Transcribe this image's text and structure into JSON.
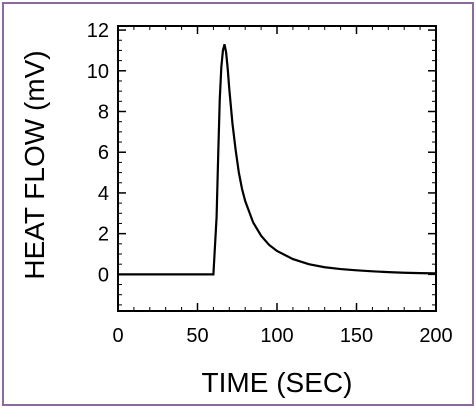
{
  "chart_data": {
    "type": "line",
    "xlabel": "TIME (SEC)",
    "ylabel": "HEAT FLOW (mV)",
    "xlim": [
      0,
      200
    ],
    "ylim": [
      -1.8,
      12.2
    ],
    "xticks": [
      0,
      50,
      100,
      150,
      200
    ],
    "yticks": [
      0,
      2,
      4,
      6,
      8,
      10,
      12
    ],
    "grid": false,
    "series": [
      {
        "color": "#000000",
        "x": [
          0,
          30,
          60,
          62,
          63,
          64,
          65,
          66,
          67,
          68,
          69,
          70,
          72,
          74,
          76,
          78,
          80,
          85,
          90,
          95,
          100,
          110,
          120,
          130,
          140,
          150,
          160,
          170,
          180,
          190,
          200
        ],
        "y": [
          0,
          0,
          0,
          2.8,
          5.8,
          8.6,
          10.2,
          11.0,
          11.3,
          10.9,
          10.1,
          9.1,
          7.4,
          6.1,
          5.0,
          4.2,
          3.6,
          2.55,
          1.9,
          1.45,
          1.15,
          0.75,
          0.5,
          0.35,
          0.26,
          0.2,
          0.15,
          0.11,
          0.08,
          0.06,
          0.05
        ]
      }
    ]
  },
  "colors": {
    "frame": "#8e6a9c",
    "line": "#000000"
  }
}
